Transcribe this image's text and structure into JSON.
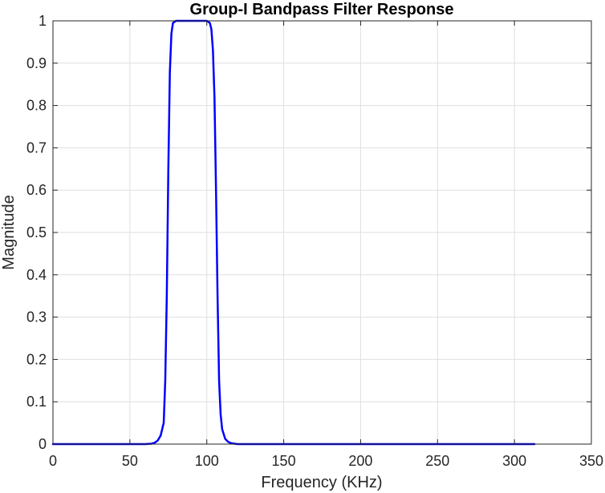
{
  "chart_data": {
    "type": "line",
    "title": "Group-I Bandpass Filter Response",
    "xlabel": "Frequency (KHz)",
    "ylabel": "Magnitude",
    "xlim": [
      0,
      350
    ],
    "ylim": [
      0,
      1
    ],
    "xticks": [
      0,
      50,
      100,
      150,
      200,
      250,
      300,
      350
    ],
    "yticks": [
      0,
      0.1,
      0.2,
      0.3,
      0.4,
      0.5,
      0.6,
      0.7,
      0.8,
      0.9,
      1
    ],
    "xtick_labels": [
      "0",
      "50",
      "100",
      "150",
      "200",
      "250",
      "300",
      "350"
    ],
    "ytick_labels": [
      "0",
      "0.1",
      "0.2",
      "0.3",
      "0.4",
      "0.5",
      "0.6",
      "0.7",
      "0.8",
      "0.9",
      "1"
    ],
    "grid": true,
    "series": [
      {
        "color": "#0000ff",
        "x": [
          0,
          60,
          64,
          66,
          68,
          70,
          72,
          73,
          74,
          75,
          76,
          77,
          78,
          80,
          85,
          90,
          95,
          100,
          102,
          103,
          104,
          105,
          106,
          107,
          108,
          109,
          110,
          112,
          114,
          116,
          118,
          120,
          125,
          150,
          200,
          250,
          313
        ],
        "y": [
          0,
          0,
          0.001,
          0.003,
          0.008,
          0.02,
          0.05,
          0.15,
          0.35,
          0.65,
          0.88,
          0.97,
          0.995,
          1,
          1,
          1,
          1,
          1,
          0.995,
          0.98,
          0.93,
          0.82,
          0.6,
          0.35,
          0.15,
          0.07,
          0.035,
          0.012,
          0.005,
          0.002,
          0.001,
          0,
          0,
          0,
          0,
          0,
          0
        ]
      }
    ]
  }
}
